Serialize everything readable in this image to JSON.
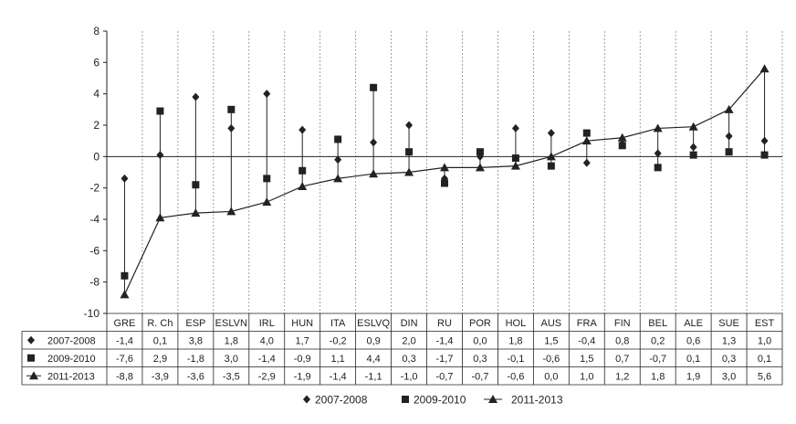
{
  "chart_data": {
    "type": "line",
    "categories": [
      "GRE",
      "R. Ch",
      "ESP",
      "ESLVN",
      "IRL",
      "HUN",
      "ITA",
      "ESLVQ",
      "DIN",
      "RU",
      "POR",
      "HOL",
      "AUS",
      "FRA",
      "FIN",
      "BEL",
      "ALE",
      "SUE",
      "EST"
    ],
    "series": [
      {
        "name": "2007-2008",
        "marker": "diamond",
        "values": [
          -1.4,
          0.1,
          3.8,
          1.8,
          4.0,
          1.7,
          -0.2,
          0.9,
          2.0,
          -1.4,
          0.0,
          1.8,
          1.5,
          -0.4,
          0.8,
          0.2,
          0.6,
          1.3,
          1.0
        ],
        "labels": [
          "-1,4",
          "0,1",
          "3,8",
          "1,8",
          "4,0",
          "1,7",
          "-0,2",
          "0,9",
          "2,0",
          "-1,4",
          "0,0",
          "1,8",
          "1,5",
          "-0,4",
          "0,8",
          "0,2",
          "0,6",
          "1,3",
          "1,0"
        ]
      },
      {
        "name": "2009-2010",
        "marker": "square",
        "values": [
          -7.6,
          2.9,
          -1.8,
          3.0,
          -1.4,
          -0.9,
          1.1,
          4.4,
          0.3,
          -1.7,
          0.3,
          -0.1,
          -0.6,
          1.5,
          0.7,
          -0.7,
          0.1,
          0.3,
          0.1
        ],
        "labels": [
          "-7,6",
          "2,9",
          "-1,8",
          "3,0",
          "-1,4",
          "-0,9",
          "1,1",
          "4,4",
          "0,3",
          "-1,7",
          "0,3",
          "-0,1",
          "-0,6",
          "1,5",
          "0,7",
          "-0,7",
          "0,1",
          "0,3",
          "0,1"
        ]
      },
      {
        "name": "2011-2013",
        "marker": "triangle",
        "values": [
          -8.8,
          -3.9,
          -3.6,
          -3.5,
          -2.9,
          -1.9,
          -1.4,
          -1.1,
          -1.0,
          -0.7,
          -0.7,
          -0.6,
          0.0,
          1.0,
          1.2,
          1.8,
          1.9,
          3.0,
          5.6
        ],
        "labels": [
          "-8,8",
          "-3,9",
          "-3,6",
          "-3,5",
          "-2,9",
          "-1,9",
          "-1,4",
          "-1,1",
          "-1,0",
          "-0,7",
          "-0,7",
          "-0,6",
          "0,0",
          "1,0",
          "1,2",
          "1,8",
          "1,9",
          "3,0",
          "5,6"
        ]
      }
    ],
    "ylim": [
      -10,
      8
    ],
    "yticks": [
      8,
      6,
      4,
      2,
      0,
      -2,
      -4,
      -6,
      -8,
      -10
    ],
    "grid": "vertical dashed",
    "legend": "bottom-center",
    "colors": {
      "marks": "#222222",
      "grid": "#888888"
    }
  }
}
